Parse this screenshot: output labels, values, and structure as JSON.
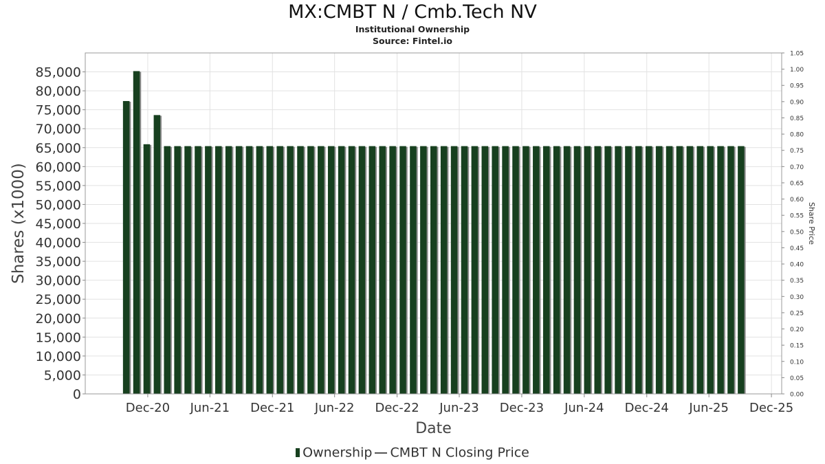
{
  "chart_data": {
    "type": "bar",
    "title": "MX:CMBT N / Cmb.Tech NV",
    "subtitle_lines": [
      "Institutional Ownership",
      "Source: Fintel.io"
    ],
    "xlabel": "Date",
    "ylabel": "Shares (x1000)",
    "y2label": "Share Price",
    "ylim": [
      0,
      90000
    ],
    "y2lim": [
      0,
      1.05
    ],
    "grid": true,
    "legend_position": "bottom-center",
    "x_range": [
      "2020-06-01",
      "2025-12-31"
    ],
    "x_tick_labels": [
      "Dec-20",
      "Jun-21",
      "Dec-21",
      "Jun-22",
      "Dec-22",
      "Jun-23",
      "Dec-23",
      "Jun-24",
      "Dec-24",
      "Jun-25",
      "Dec-25"
    ],
    "x_tick_dates": [
      "2020-12-01",
      "2021-06-01",
      "2021-12-01",
      "2022-06-01",
      "2022-12-01",
      "2023-06-01",
      "2023-12-01",
      "2024-06-01",
      "2024-12-01",
      "2025-06-01",
      "2025-12-01"
    ],
    "y_tick_labels": [
      "0",
      "5,000",
      "10,000",
      "15,000",
      "20,000",
      "25,000",
      "30,000",
      "35,000",
      "40,000",
      "45,000",
      "50,000",
      "55,000",
      "60,000",
      "65,000",
      "70,000",
      "75,000",
      "80,000",
      "85,000"
    ],
    "y2_tick_labels": [
      "0.00",
      "0.05",
      "0.10",
      "0.15",
      "0.20",
      "0.25",
      "0.30",
      "0.35",
      "0.40",
      "0.45",
      "0.50",
      "0.55",
      "0.60",
      "0.65",
      "0.70",
      "0.75",
      "0.80",
      "0.85",
      "0.90",
      "0.95",
      "1.00",
      "1.05"
    ],
    "series": [
      {
        "name": "Ownership",
        "color": "#17401f",
        "x": [
          "2020-09-29",
          "2020-10-29",
          "2020-11-28",
          "2020-12-28",
          "2021-01-27",
          "2021-02-26",
          "2021-03-28",
          "2021-04-27",
          "2021-05-27",
          "2021-06-26",
          "2021-07-26",
          "2021-08-25",
          "2021-09-24",
          "2021-10-24",
          "2021-11-23",
          "2021-12-23",
          "2022-01-22",
          "2022-02-21",
          "2022-03-23",
          "2022-04-22",
          "2022-05-22",
          "2022-06-21",
          "2022-07-21",
          "2022-08-20",
          "2022-09-19",
          "2022-10-19",
          "2022-11-18",
          "2022-12-18",
          "2023-01-17",
          "2023-02-16",
          "2023-03-18",
          "2023-04-17",
          "2023-05-17",
          "2023-06-16",
          "2023-07-16",
          "2023-08-15",
          "2023-09-14",
          "2023-10-14",
          "2023-11-13",
          "2023-12-13",
          "2024-01-12",
          "2024-02-11",
          "2024-03-12",
          "2024-04-11",
          "2024-05-11",
          "2024-06-10",
          "2024-07-10",
          "2024-08-09",
          "2024-09-08",
          "2024-10-08",
          "2024-11-07",
          "2024-12-07",
          "2025-01-06",
          "2025-02-05",
          "2025-03-07",
          "2025-04-06",
          "2025-05-06",
          "2025-06-05",
          "2025-07-05",
          "2025-08-04",
          "2025-09-03"
        ],
        "values": [
          77300,
          85200,
          65900,
          73600,
          65400,
          65400,
          65400,
          65400,
          65400,
          65400,
          65400,
          65400,
          65400,
          65400,
          65400,
          65400,
          65400,
          65400,
          65400,
          65400,
          65400,
          65400,
          65400,
          65400,
          65400,
          65400,
          65400,
          65400,
          65400,
          65400,
          65400,
          65400,
          65400,
          65400,
          65400,
          65400,
          65400,
          65400,
          65400,
          65400,
          65400,
          65400,
          65400,
          65400,
          65400,
          65400,
          65400,
          65400,
          65400,
          65400,
          65400,
          65400,
          65400,
          65400,
          65400,
          65400,
          65400,
          65400,
          65400,
          65400,
          65400
        ]
      },
      {
        "name": "CMBT N Closing Price",
        "color": "#555555",
        "values": []
      }
    ]
  }
}
